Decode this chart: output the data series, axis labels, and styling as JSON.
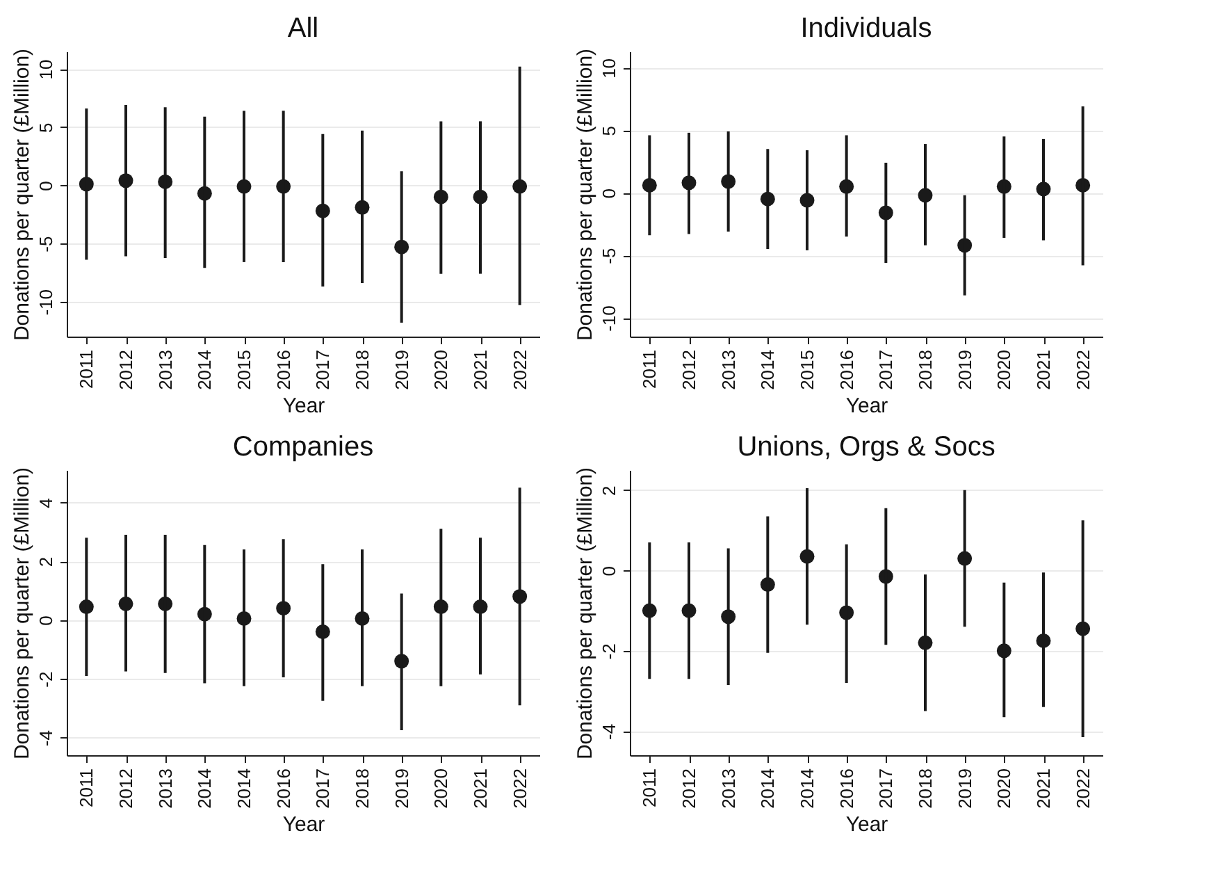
{
  "chart_data": [
    {
      "type": "scatter",
      "title": "All",
      "xlabel": "Year",
      "ylabel": "Donations per quarter (£Million)",
      "categories": [
        "2011",
        "2012",
        "2013",
        "2014",
        "2015",
        "2016",
        "2017",
        "2018",
        "2019",
        "2020",
        "2021",
        "2022"
      ],
      "values": [
        0.1,
        0.4,
        0.3,
        -0.7,
        -0.1,
        -0.1,
        -2.2,
        -1.9,
        -5.3,
        -1.0,
        -1.0,
        -0.1
      ],
      "errors": [
        [
          -6.4,
          6.6
        ],
        [
          -6.1,
          6.9
        ],
        [
          -6.25,
          6.7
        ],
        [
          -7.1,
          5.9
        ],
        [
          -6.6,
          6.4
        ],
        [
          -6.6,
          6.4
        ],
        [
          -8.7,
          4.4
        ],
        [
          -8.4,
          4.7
        ],
        [
          -11.8,
          1.2
        ],
        [
          -7.6,
          5.5
        ],
        [
          -7.6,
          5.5
        ],
        [
          -10.3,
          10.2
        ]
      ],
      "color": "#1a1a1a",
      "marker": "circle",
      "ylim": [
        -13,
        11.5
      ],
      "yticks": [
        -10,
        -5,
        0,
        5,
        10
      ],
      "grid": "y"
    },
    {
      "type": "scatter",
      "title": "Individuals",
      "xlabel": "Year",
      "ylabel": "Donations per quarter (£Million)",
      "categories": [
        "2011",
        "2012",
        "2013",
        "2014",
        "2015",
        "2016",
        "2017",
        "2018",
        "2019",
        "2020",
        "2021",
        "2022"
      ],
      "values": [
        0.6,
        0.8,
        0.9,
        -0.5,
        -0.6,
        0.5,
        -1.6,
        -0.2,
        -4.2,
        0.5,
        0.3,
        0.6
      ],
      "errors": [
        [
          -3.4,
          4.6
        ],
        [
          -3.3,
          4.8
        ],
        [
          -3.1,
          4.9
        ],
        [
          -4.5,
          3.5
        ],
        [
          -4.6,
          3.4
        ],
        [
          -3.5,
          4.6
        ],
        [
          -5.6,
          2.4
        ],
        [
          -4.2,
          3.9
        ],
        [
          -8.2,
          -0.2
        ],
        [
          -3.6,
          4.5
        ],
        [
          -3.8,
          4.3
        ],
        [
          -5.8,
          6.9
        ]
      ],
      "color": "#1a1a1a",
      "marker": "circle",
      "ylim": [
        -11.5,
        11.3
      ],
      "yticks": [
        -10,
        -5,
        0,
        5,
        10
      ],
      "grid": "y"
    },
    {
      "type": "scatter",
      "title": "Companies",
      "xlabel": "Year",
      "ylabel": "Donations per quarter (£Million)",
      "categories": [
        "2011",
        "2012",
        "2013",
        "2014",
        "2014",
        "2016",
        "2017",
        "2018",
        "2019",
        "2020",
        "2021",
        "2022"
      ],
      "values": [
        0.45,
        0.55,
        0.55,
        0.2,
        0.05,
        0.4,
        -0.4,
        0.05,
        -1.4,
        0.45,
        0.45,
        0.8
      ],
      "errors": [
        [
          -1.9,
          2.8
        ],
        [
          -1.75,
          2.9
        ],
        [
          -1.8,
          2.9
        ],
        [
          -2.15,
          2.55
        ],
        [
          -2.25,
          2.4
        ],
        [
          -1.95,
          2.75
        ],
        [
          -2.75,
          1.9
        ],
        [
          -2.25,
          2.4
        ],
        [
          -3.75,
          0.9
        ],
        [
          -2.25,
          3.1
        ],
        [
          -1.85,
          2.8
        ],
        [
          -2.9,
          4.5
        ]
      ],
      "color": "#1a1a1a",
      "marker": "circle",
      "ylim": [
        -4.6,
        5.1
      ],
      "yticks": [
        -4,
        -2,
        0,
        2,
        4
      ],
      "grid": "y"
    },
    {
      "type": "scatter",
      "title": "Unions, Orgs & Socs",
      "xlabel": "Year",
      "ylabel": "Donations per quarter (£Million)",
      "categories": [
        "2011",
        "2012",
        "2013",
        "2014",
        "2014",
        "2016",
        "2017",
        "2018",
        "2019",
        "2020",
        "2021",
        "2022"
      ],
      "values": [
        -1.0,
        -1.0,
        -1.15,
        -0.35,
        0.35,
        -1.05,
        -0.15,
        -1.8,
        0.3,
        -2.0,
        -1.75,
        -1.45
      ],
      "errors": [
        [
          -2.7,
          0.7
        ],
        [
          -2.7,
          0.7
        ],
        [
          -2.85,
          0.55
        ],
        [
          -2.05,
          1.35
        ],
        [
          -1.35,
          2.05
        ],
        [
          -2.8,
          0.65
        ],
        [
          -1.85,
          1.55
        ],
        [
          -3.5,
          -0.1
        ],
        [
          -1.4,
          2.0
        ],
        [
          -3.65,
          -0.3
        ],
        [
          -3.4,
          -0.05
        ],
        [
          -4.15,
          1.25
        ]
      ],
      "color": "#1a1a1a",
      "marker": "circle",
      "ylim": [
        -4.6,
        2.5
      ],
      "yticks": [
        -4,
        -2,
        0,
        2
      ],
      "grid": "y"
    }
  ]
}
